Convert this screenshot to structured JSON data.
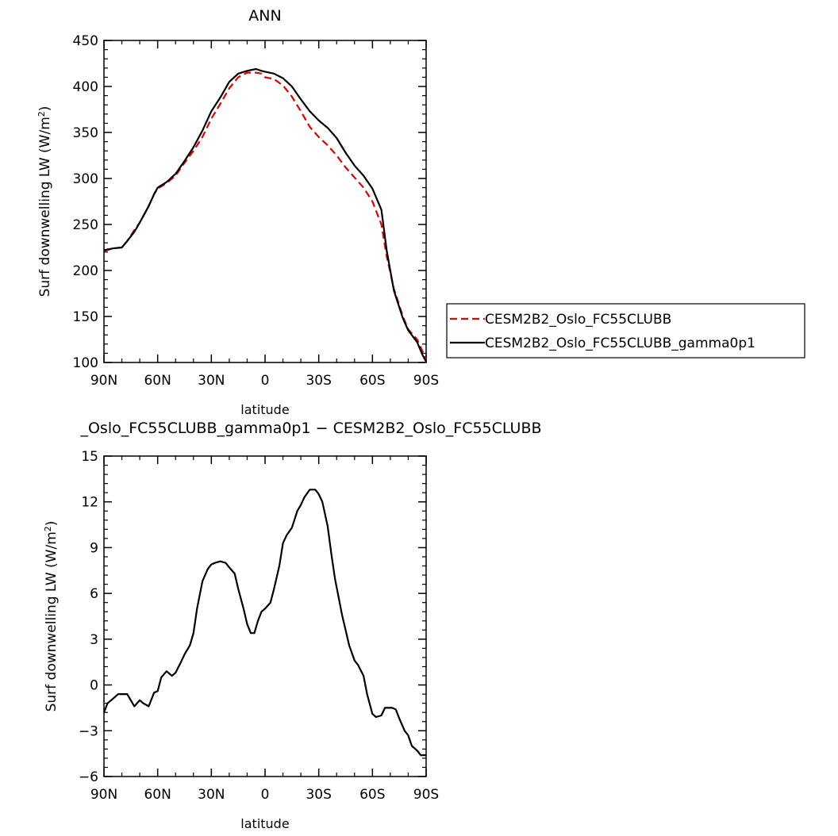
{
  "chart_data": [
    {
      "type": "line",
      "title": "ANN",
      "xlabel": "latitude",
      "ylabel": "Surf downwelling LW (W/m²)",
      "ylabel_main": "Surf downwelling LW (W/m",
      "ylabel_sup": "2",
      "ylabel_close": ")",
      "xlim": [
        90,
        -90
      ],
      "ylim": [
        100,
        450
      ],
      "xticks": [
        90,
        60,
        30,
        0,
        -30,
        -60,
        -90
      ],
      "xtick_labels": [
        "90N",
        "60N",
        "30N",
        "0",
        "30S",
        "60S",
        "90S"
      ],
      "yticks": [
        100,
        150,
        200,
        250,
        300,
        350,
        400,
        450
      ],
      "ytick_labels": [
        "100",
        "150",
        "200",
        "250",
        "300",
        "350",
        "400",
        "450"
      ],
      "legend_position": "right",
      "series": [
        {
          "name": "CESM2B2_Oslo_FC55CLUBB",
          "color": "#e00000",
          "dash": "dashed",
          "x": [
            90,
            85,
            80,
            77,
            73,
            70,
            65,
            62,
            60,
            55,
            50,
            45,
            40,
            35,
            30,
            25,
            20,
            15,
            10,
            5,
            2,
            0,
            -5,
            -10,
            -15,
            -20,
            -25,
            -30,
            -35,
            -40,
            -45,
            -50,
            -55,
            -60,
            -65,
            -68,
            -72,
            -77,
            -80,
            -85,
            -88,
            -90
          ],
          "y": [
            221,
            224,
            225,
            232,
            244,
            252,
            270,
            283,
            289,
            295,
            303,
            317,
            330,
            345,
            365,
            381,
            398,
            410,
            415,
            415,
            414,
            410,
            408,
            401,
            389,
            373,
            356,
            345,
            336,
            325,
            312,
            301,
            290,
            275,
            250,
            215,
            180,
            150,
            136,
            125,
            112,
            103
          ]
        },
        {
          "name": "CESM2B2_Oslo_FC55CLUBB_gamma0p1",
          "color": "#000000",
          "dash": "solid",
          "x": [
            90,
            85,
            80,
            77,
            73,
            70,
            65,
            62,
            60,
            55,
            50,
            45,
            40,
            35,
            30,
            25,
            20,
            15,
            10,
            5,
            2,
            0,
            -5,
            -10,
            -15,
            -20,
            -25,
            -30,
            -35,
            -40,
            -45,
            -50,
            -55,
            -60,
            -65,
            -68,
            -72,
            -77,
            -80,
            -85,
            -88,
            -90
          ],
          "y": [
            222,
            224,
            225,
            232,
            242,
            252,
            270,
            283,
            290,
            296,
            305,
            319,
            334,
            352,
            373,
            388,
            405,
            414,
            417,
            419,
            417,
            416,
            414,
            409,
            400,
            386,
            373,
            363,
            355,
            344,
            328,
            314,
            303,
            289,
            266,
            221,
            178,
            148,
            135,
            122,
            108,
            101
          ]
        }
      ]
    },
    {
      "type": "line",
      "title": "_Oslo_FC55CLUBB_gamma0p1 − CESM2B2_Oslo_FC55CLUBB",
      "xlabel": "latitude",
      "ylabel": "Surf downwelling LW (W/m²)",
      "ylabel_main": "Surf downwelling LW (W/m",
      "ylabel_sup": "2",
      "ylabel_close": ")",
      "xlim": [
        90,
        -90
      ],
      "ylim": [
        -6,
        15
      ],
      "xticks": [
        90,
        60,
        30,
        0,
        -30,
        -60,
        -90
      ],
      "xtick_labels": [
        "90N",
        "60N",
        "30N",
        "0",
        "30S",
        "60S",
        "90S"
      ],
      "yticks": [
        -6,
        -3,
        0,
        3,
        6,
        9,
        12,
        15
      ],
      "ytick_labels": [
        "−6",
        "−3",
        "0",
        "3",
        "6",
        "9",
        "12",
        "15"
      ],
      "series": [
        {
          "color": "#000000",
          "dash": "solid",
          "x": [
            90,
            88,
            85,
            82,
            80,
            77,
            75,
            73,
            70,
            68,
            65,
            62,
            60,
            58,
            55,
            52,
            50,
            47,
            45,
            42,
            40,
            38,
            35,
            32,
            30,
            28,
            25,
            22,
            20,
            17,
            15,
            12,
            10,
            8,
            6,
            4,
            2,
            0,
            -3,
            -5,
            -8,
            -10,
            -12,
            -15,
            -18,
            -20,
            -22,
            -25,
            -28,
            -30,
            -32,
            -35,
            -37,
            -39,
            -41,
            -43,
            -45,
            -47,
            -50,
            -52,
            -55,
            -57,
            -60,
            -62,
            -65,
            -67,
            -69,
            -71,
            -73,
            -75,
            -78,
            -80,
            -82,
            -85,
            -87,
            -89,
            -90
          ],
          "y": [
            -1.8,
            -1.2,
            -0.9,
            -0.6,
            -0.6,
            -0.6,
            -1.0,
            -1.4,
            -1.0,
            -1.2,
            -1.4,
            -0.5,
            -0.4,
            0.5,
            0.9,
            0.6,
            0.8,
            1.5,
            2.0,
            2.6,
            3.4,
            5.0,
            6.8,
            7.6,
            7.9,
            8.0,
            8.1,
            8.0,
            7.7,
            7.3,
            6.3,
            5.0,
            4.0,
            3.4,
            3.4,
            4.2,
            4.8,
            5.0,
            5.4,
            6.3,
            7.8,
            9.3,
            9.8,
            10.3,
            11.4,
            11.8,
            12.3,
            12.8,
            12.8,
            12.5,
            12.0,
            10.4,
            8.6,
            7.0,
            5.8,
            4.6,
            3.6,
            2.6,
            1.6,
            1.3,
            0.6,
            -0.6,
            -1.9,
            -2.1,
            -2.0,
            -1.5,
            -1.5,
            -1.5,
            -1.6,
            -2.2,
            -3.0,
            -3.3,
            -4.0,
            -4.3,
            -4.6,
            -4.6,
            -4.6
          ]
        }
      ]
    }
  ]
}
